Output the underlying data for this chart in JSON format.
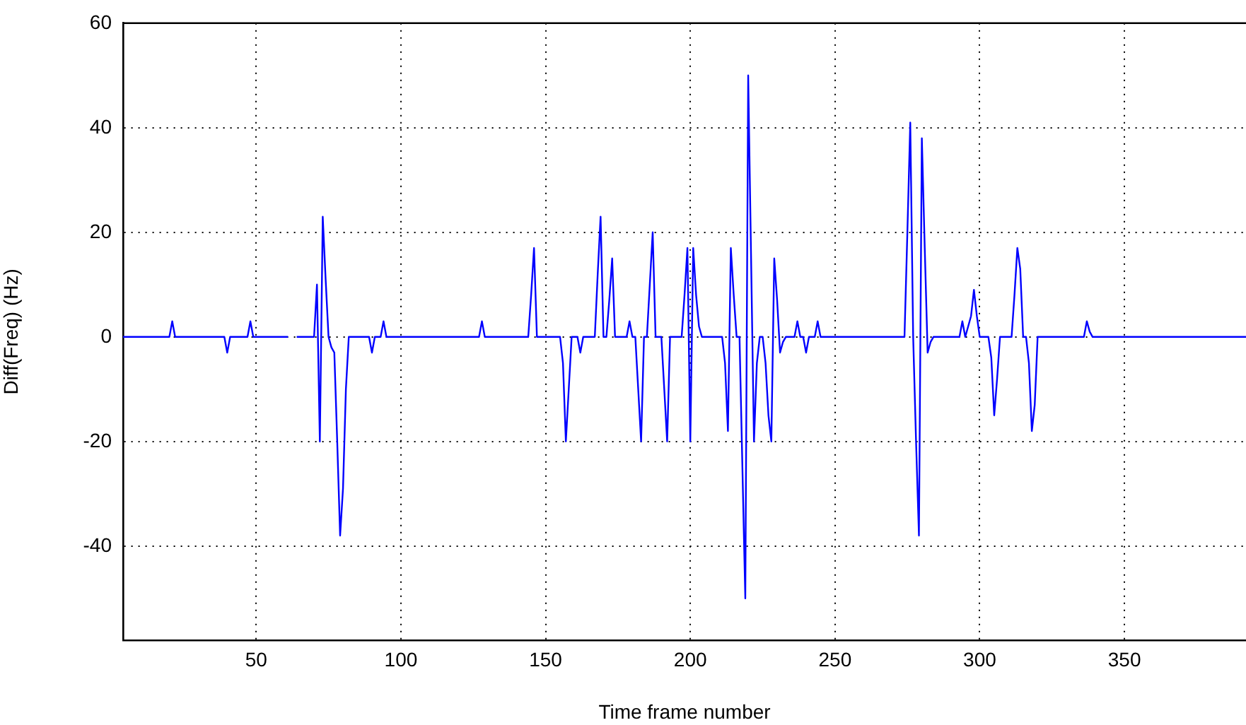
{
  "chart_data": {
    "type": "line",
    "xlabel": "Time frame number",
    "ylabel": "Diff(Freq) (Hz)",
    "xlim": [
      4,
      392
    ],
    "xticks": [
      50,
      100,
      150,
      200,
      250,
      300,
      350
    ],
    "ylim": [
      -58,
      60
    ],
    "yticks": [
      -40,
      -20,
      0,
      20,
      40,
      60
    ],
    "grid": true,
    "legend": false,
    "marker": "none",
    "line_style": "solid",
    "series": [
      {
        "color": "#0000ff",
        "x": [
          4,
          20,
          21,
          22,
          39,
          40,
          41,
          47,
          48,
          49,
          61,
          62,
          63,
          64,
          70,
          71,
          72,
          73,
          74,
          75,
          76,
          77,
          78,
          79,
          80,
          81,
          82,
          89,
          90,
          91,
          93,
          94,
          95,
          127,
          128,
          129,
          144,
          145,
          146,
          147,
          155,
          156,
          157,
          158,
          159,
          161,
          162,
          163,
          167,
          168,
          169,
          170,
          171,
          172,
          173,
          174,
          178,
          179,
          180,
          181,
          182,
          183,
          184,
          185,
          186,
          187,
          188,
          190,
          191,
          192,
          193,
          197,
          198,
          199,
          200,
          201,
          202,
          203,
          204,
          211,
          212,
          213,
          214,
          215,
          216,
          217,
          218,
          219,
          220,
          221,
          222,
          223,
          224,
          225,
          226,
          227,
          228,
          229,
          230,
          231,
          232,
          233,
          236,
          237,
          238,
          239,
          240,
          241,
          243,
          244,
          245,
          274,
          275,
          276,
          277,
          278,
          279,
          280,
          281,
          282,
          283,
          284,
          293,
          294,
          295,
          297,
          298,
          299,
          300,
          303,
          304,
          305,
          306,
          307,
          311,
          312,
          313,
          314,
          315,
          316,
          317,
          318,
          319,
          320,
          336,
          337,
          338,
          339,
          392
        ],
        "values": [
          0,
          0,
          3,
          0,
          0,
          -3,
          0,
          0,
          3,
          0,
          0,
          null,
          null,
          0,
          0,
          10,
          -20,
          23,
          11,
          0,
          -2,
          -3,
          -20,
          -38,
          -29,
          -10,
          0,
          0,
          -3,
          0,
          0,
          3,
          0,
          0,
          3,
          0,
          0,
          8,
          17,
          0,
          0,
          -5,
          -20,
          -10,
          0,
          0,
          -3,
          0,
          0,
          12,
          23,
          0,
          0,
          7,
          15,
          0,
          0,
          3,
          0,
          0,
          -10,
          -20,
          0,
          0,
          10,
          20,
          0,
          0,
          -10,
          -20,
          0,
          0,
          8,
          17,
          -20,
          17,
          8,
          2,
          0,
          0,
          -5,
          -18,
          17,
          8,
          0,
          0,
          -25,
          -50,
          50,
          15,
          -20,
          -5,
          0,
          0,
          -5,
          -15,
          -20,
          15,
          7,
          -3,
          -1,
          0,
          0,
          3,
          0,
          0,
          -3,
          0,
          0,
          3,
          0,
          0,
          20,
          41,
          0,
          -20,
          -38,
          38,
          17,
          -3,
          -1,
          0,
          0,
          3,
          0,
          4,
          9,
          4,
          0,
          0,
          -4,
          -15,
          -8,
          0,
          0,
          8,
          17,
          13,
          0,
          0,
          -5,
          -18,
          -13,
          0,
          0,
          3,
          1,
          0,
          0
        ]
      }
    ]
  }
}
